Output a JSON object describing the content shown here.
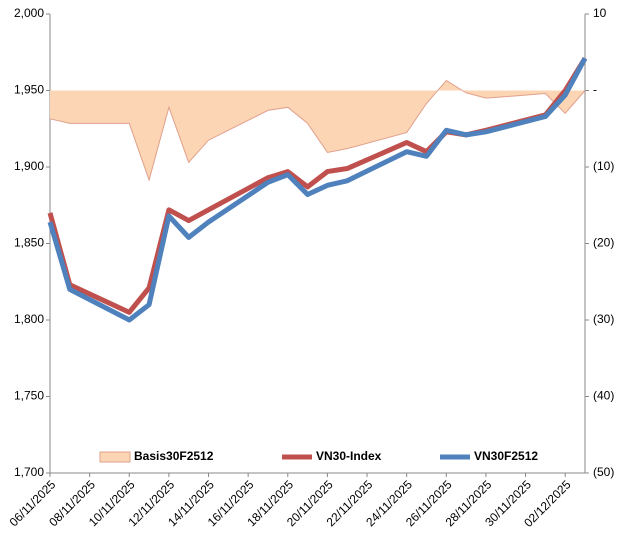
{
  "chart_data": {
    "type": "line",
    "x": [
      "06/11/2025",
      "07/11/2025",
      "10/11/2025",
      "11/11/2025",
      "12/11/2025",
      "13/11/2025",
      "14/11/2025",
      "17/11/2025",
      "18/11/2025",
      "19/11/2025",
      "20/11/2025",
      "21/11/2025",
      "24/11/2025",
      "25/11/2025",
      "26/11/2025",
      "27/11/2025",
      "28/11/2025",
      "01/12/2025",
      "02/12/2025",
      "03/12/2025"
    ],
    "xlim": [
      "06/11/2025",
      "03/12/2025"
    ],
    "xticks": [
      "06/11/2025",
      "08/11/2025",
      "10/11/2025",
      "12/11/2025",
      "14/11/2025",
      "16/11/2025",
      "18/11/2025",
      "20/11/2025",
      "22/11/2025",
      "24/11/2025",
      "26/11/2025",
      "28/11/2025",
      "30/11/2025",
      "02/12/2025"
    ],
    "series": [
      {
        "name": "Basis30F2512",
        "type": "area",
        "axis": "y2",
        "color": "#fcd5b4",
        "line_color": "#e0a08c",
        "values": [
          -3.7,
          -4.3,
          -4.3,
          -11.7,
          -2.2,
          -9.4,
          -6.5,
          -2.6,
          -2.2,
          -4.3,
          -8.1,
          -7.6,
          -5.5,
          -1.7,
          1.3,
          -0.3,
          -1.0,
          -0.4,
          -3.0,
          0
        ]
      },
      {
        "name": "VN30-Index",
        "type": "line",
        "color": "#c0504d",
        "values": [
          1870,
          1823,
          1805,
          1821,
          1872,
          1865,
          1872,
          1893,
          1897,
          1887,
          1897,
          1899,
          1916,
          1910,
          1923,
          1921,
          1924,
          1934,
          1950,
          1971
        ]
      },
      {
        "name": "VN30F2512",
        "type": "line",
        "color": "#4f81bd",
        "values": [
          1864,
          1820,
          1800,
          1810,
          1868,
          1854,
          1864,
          1890,
          1895,
          1882,
          1888,
          1891,
          1910,
          1907,
          1924,
          1921,
          1923,
          1933,
          1947,
          1971
        ]
      }
    ],
    "ylim": [
      1700,
      2000
    ],
    "yticks": [
      {
        "value": 1700,
        "label": "1,700"
      },
      {
        "value": 1750,
        "label": "1,750"
      },
      {
        "value": 1800,
        "label": "1,800"
      },
      {
        "value": 1850,
        "label": "1,850"
      },
      {
        "value": 1900,
        "label": "1,900"
      },
      {
        "value": 1950,
        "label": "1,950"
      },
      {
        "value": 2000,
        "label": "2,000"
      }
    ],
    "y2lim": [
      -50,
      10
    ],
    "y2ticks": [
      10,
      {
        "value": 0,
        "label": "-"
      },
      {
        "value": -10,
        "label": "(10)"
      },
      {
        "value": -20,
        "label": "(20)"
      },
      {
        "value": -30,
        "label": "(30)"
      },
      {
        "value": -40,
        "label": "(40)"
      },
      {
        "value": -50,
        "label": "(50)"
      }
    ],
    "grid": false
  }
}
